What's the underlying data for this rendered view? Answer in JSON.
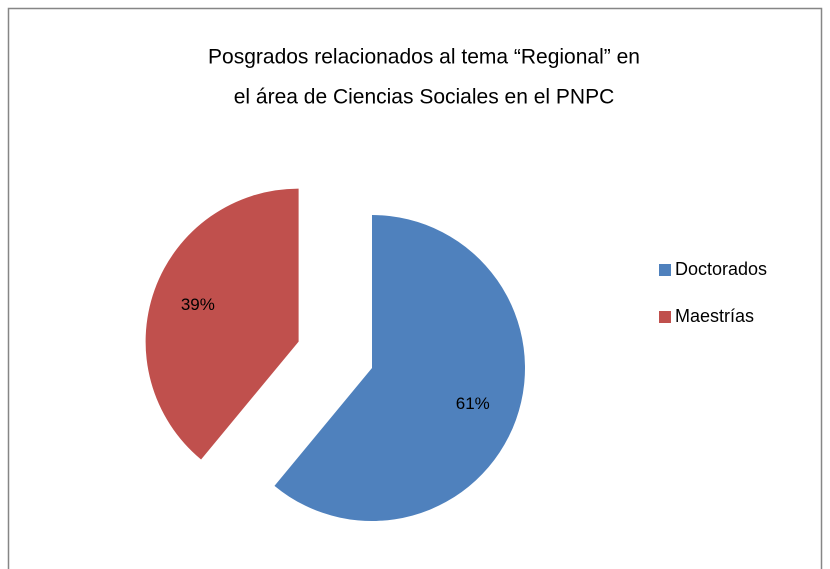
{
  "chart_data": {
    "type": "pie",
    "title": [
      "Posgrados relacionados al tema “Regional” en",
      "el área de Ciencias Sociales en el PNPC"
    ],
    "categories": [
      "Doctorados",
      "Maestrías"
    ],
    "values": [
      61,
      39
    ],
    "value_labels": [
      "61%",
      "39%"
    ],
    "colors": [
      "#4f81bd",
      "#c0504d"
    ],
    "legend": "right"
  }
}
